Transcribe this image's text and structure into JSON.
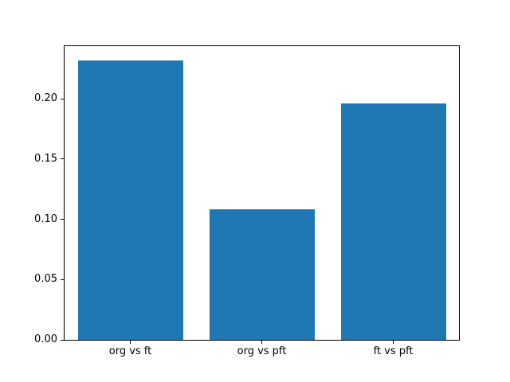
{
  "chart_data": {
    "type": "bar",
    "title": "",
    "xlabel": "",
    "ylabel": "",
    "categories": [
      "org vs ft",
      "org vs pft",
      "ft vs pft"
    ],
    "values": [
      0.232,
      0.108,
      0.196
    ],
    "ylim": [
      0,
      0.2436
    ],
    "yticks": [
      0.0,
      0.05,
      0.1,
      0.15,
      0.2
    ],
    "ytick_labels": [
      "0.00",
      "0.05",
      "0.10",
      "0.15",
      "0.20"
    ],
    "bar_color": "#1f77b4",
    "bar_width_fraction": 0.8,
    "background_color": "#ffffff",
    "spine_color": "#000000",
    "grid": false,
    "legend": null
  }
}
